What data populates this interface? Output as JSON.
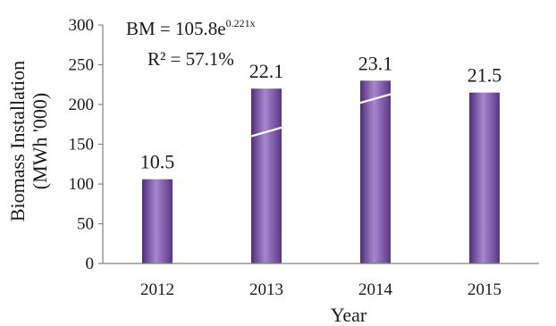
{
  "chart_data": {
    "type": "bar",
    "categories": [
      "2012",
      "2013",
      "2014",
      "2015"
    ],
    "values": [
      106,
      220,
      230,
      215
    ],
    "data_labels": [
      "10.5",
      "22.1",
      "23.1",
      "21.5"
    ],
    "xlabel": "Year",
    "ylabel_line1": "Biomass Installation",
    "ylabel_line2": "(MWh '000)",
    "ylim": [
      0,
      300
    ],
    "yticks": [
      0,
      50,
      100,
      150,
      200,
      250,
      300
    ],
    "grid": false,
    "legend": "none",
    "bar_color": "#7a4fa3",
    "trendline": {
      "type": "exponential",
      "color": "#ffffff",
      "equation_prefix": "BM = 105.8e",
      "equation_exponent": "0.221x",
      "r2_text": "R² = 57.1%",
      "points": [
        {
          "x": "2013",
          "y": 160
        },
        {
          "x": "2013",
          "y": 171
        },
        {
          "x": "2014",
          "y": 202
        },
        {
          "x": "2014",
          "y": 213
        }
      ]
    }
  }
}
